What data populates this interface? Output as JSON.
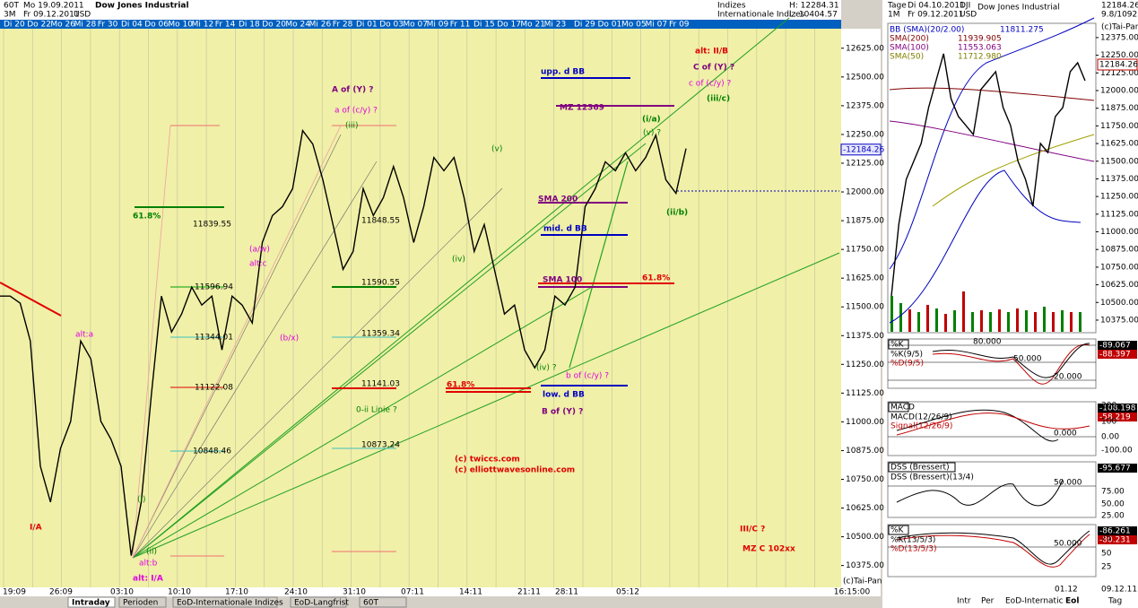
{
  "header": {
    "period": "60T",
    "from": "Mo 19.09.2011",
    "range": "3M",
    "to": "Fr 09.12.2011",
    "currency": "USD",
    "title": "Dow Jones Industrial",
    "group": "Indizes",
    "subgroup": "Internationale Indizes",
    "high": "H: 12284.31",
    "low": "L: 10404.57"
  },
  "date_strip": [
    "Di 20",
    "Do 22",
    "Mo 26",
    "Mi 28",
    "Fr 30",
    "Di 04",
    "Do 06",
    "Mo 10",
    "Mi 12",
    "Fr 14",
    "Di 18",
    "Do 20",
    "Mo 24",
    "Mi 26",
    "Fr 28",
    "Di 01",
    "Do 03",
    "Mo 07",
    "Mi 09",
    "Fr 11",
    "Di 15",
    "Do 17",
    "Mo 21",
    "Mi 23",
    "Di 29",
    "Do 01",
    "Mo 05",
    "Mi 07",
    "Fr 09"
  ],
  "x_labels": [
    "19:09",
    "26:09",
    "03:10",
    "10:10",
    "17:10",
    "24:10",
    "31:10",
    "07:11",
    "14:11",
    "21:11",
    "28:11",
    "05:12",
    "16:15:00"
  ],
  "chart_data": {
    "type": "line",
    "color": "#000000",
    "ylim": [
      10280,
      12710
    ],
    "values": [
      11547,
      11547,
      11516,
      11352,
      10807,
      10651,
      10885,
      11002,
      11352,
      11274,
      11002,
      10924,
      10807,
      10418,
      10651,
      11118,
      11547,
      11391,
      11469,
      11586,
      11508,
      11547,
      11313,
      11547,
      11508,
      11430,
      11780,
      11897,
      11936,
      12014,
      12267,
      12208,
      12053,
      11858,
      11663,
      11741,
      12014,
      11897,
      11975,
      12111,
      11975,
      11780,
      11936,
      12150,
      12092,
      12150,
      11975,
      11741,
      11858,
      11663,
      11469,
      11508,
      11313,
      11235,
      11313,
      11547,
      11508,
      11586,
      11936,
      12014,
      12131,
      12092,
      12170,
      12092,
      12150,
      12247,
      12053,
      11994,
      12189
    ],
    "yticks": [
      {
        "value": 10375,
        "label": "10375.00"
      },
      {
        "value": 10500,
        "label": "10500.00"
      },
      {
        "value": 10625,
        "label": "10625.00"
      },
      {
        "value": 10750,
        "label": "10750.00"
      },
      {
        "value": 10875,
        "label": "10875.00"
      },
      {
        "value": 11000,
        "label": "11000.00"
      },
      {
        "value": 11125,
        "label": "11125.00"
      },
      {
        "value": 11250,
        "label": "11250.00"
      },
      {
        "value": 11375,
        "label": "11375.00"
      },
      {
        "value": 11500,
        "label": "11500.00"
      },
      {
        "value": 11625,
        "label": "11625.00"
      },
      {
        "value": 11750,
        "label": "11750.00"
      },
      {
        "value": 11875,
        "label": "11875.00"
      },
      {
        "value": 12000,
        "label": "12000.00"
      },
      {
        "value": 12125,
        "label": "12125.00"
      },
      {
        "value": 12250,
        "label": "12250.00"
      },
      {
        "value": 12375,
        "label": "12375.00"
      },
      {
        "value": 12500,
        "label": "12500.00"
      },
      {
        "value": 12625,
        "label": "12625.00"
      }
    ],
    "last_price": {
      "value": 12184.26,
      "label": "-12184.26"
    }
  },
  "annotations": [
    {
      "text": "alt: II/B",
      "color": "#e00000"
    },
    {
      "text": "C of (Y) ?",
      "color": "#800080"
    },
    {
      "text": "c of (c/y) ?",
      "color": "#e000e0"
    },
    {
      "text": "(iii/c)",
      "color": "#008000"
    },
    {
      "text": "A of (Y) ?",
      "color": "#800080"
    },
    {
      "text": "a of (c/y) ?",
      "color": "#e000e0"
    },
    {
      "text": "(iii)",
      "color": "#008000"
    },
    {
      "text": "(v)",
      "color": "#008000"
    },
    {
      "text": "upp. d BB",
      "color": "#0000c0"
    },
    {
      "text": "MZ 12369",
      "color": "#800080"
    },
    {
      "text": "(i/a)",
      "color": "#008000"
    },
    {
      "text": "(v) ?",
      "color": "#008000"
    },
    {
      "text": "(ii/b)",
      "color": "#008000"
    },
    {
      "text": "SMA 200",
      "color": "#800080"
    },
    {
      "text": "mid. d BB",
      "color": "#0000c0"
    },
    {
      "text": "SMA 100",
      "color": "#800080"
    },
    {
      "text": "61.8%",
      "color": "#e00000"
    },
    {
      "text": "61.8%",
      "color": "#008000"
    },
    {
      "text": "(a/w)",
      "color": "#e000e0"
    },
    {
      "text": "alt:c",
      "color": "#e000e0"
    },
    {
      "text": "(b/x)",
      "color": "#e000e0"
    },
    {
      "text": "(iv)",
      "color": "#008000"
    },
    {
      "text": "alt:a",
      "color": "#e000e0"
    },
    {
      "text": "(iv) ?",
      "color": "#008000"
    },
    {
      "text": "b of (c/y) ?",
      "color": "#e000e0"
    },
    {
      "text": "61.8%",
      "color": "#e00000"
    },
    {
      "text": "low. d BB",
      "color": "#0000c0"
    },
    {
      "text": "B of (Y) ?",
      "color": "#800080"
    },
    {
      "text": "0-ii Linie ?",
      "color": "#008000"
    },
    {
      "text": "(c) twiccs.com",
      "color": "#e00000"
    },
    {
      "text": "(c) elliottwavesonline.com",
      "color": "#e00000"
    },
    {
      "text": "I/A",
      "color": "#e00000"
    },
    {
      "text": "(i)",
      "color": "#008000"
    },
    {
      "text": "(ii)",
      "color": "#008000"
    },
    {
      "text": "alt:b",
      "color": "#e000e0"
    },
    {
      "text": "alt: I/A",
      "color": "#e000e0"
    },
    {
      "text": "III/C ?",
      "color": "#e00000"
    },
    {
      "text": "MZ C  102xx",
      "color": "#e00000"
    },
    {
      "text": "(c)Tai-Pan",
      "color": "#000000"
    }
  ],
  "level_labels": [
    "11839.55",
    "11596.94",
    "11344.01",
    "11122.08",
    "10848.46",
    "11848.55",
    "11590.55",
    "11359.34",
    "11141.03",
    "10873.24"
  ],
  "tabs": [
    "Intraday",
    "Perioden",
    "EoD-Internationale Indizes",
    "EoD-Langfrist",
    "60T"
  ],
  "right_panel": {
    "period": "Tage",
    "from": "Di 04.10.2011",
    "symbol": "DJI",
    "title": "Dow Jones Industrial",
    "range": "1M",
    "to": "Fr 09.12.2011",
    "currency": "USD",
    "price": "12184.26",
    "extra": "9.8/1092.2",
    "copyright": "(c)Tai-Pan",
    "legend": [
      {
        "name": "BB (SMA)(20/2.00)",
        "value": "11811.275",
        "color": "#0000c0"
      },
      {
        "name": "SMA(200)",
        "value": "11939.905",
        "color": "#800000"
      },
      {
        "name": "SMA(100)",
        "value": "11553.063",
        "color": "#800080"
      },
      {
        "name": "SMA(50)",
        "value": "11712.980",
        "color": "#808000"
      }
    ],
    "chart_data": {
      "type": "line",
      "color": "#000000",
      "ylim": [
        10324,
        12438
      ],
      "values": [
        10546,
        11054,
        11372,
        11499,
        11626,
        11880,
        12070,
        12261,
        11943,
        11816,
        11753,
        11689,
        12007,
        12070,
        12134,
        11880,
        11753,
        11499,
        11372,
        11181,
        11626,
        11562,
        11816,
        11880,
        12134,
        12197,
        12070
      ],
      "yticks": [
        {
          "value": 10375,
          "label": "10375.00"
        },
        {
          "value": 10500,
          "label": "10500.00"
        },
        {
          "value": 10625,
          "label": "10625.00"
        },
        {
          "value": 10750,
          "label": "10750.00"
        },
        {
          "value": 10875,
          "label": "10875.00"
        },
        {
          "value": 11000,
          "label": "11000.00"
        },
        {
          "value": 11125,
          "label": "11125.00"
        },
        {
          "value": 11250,
          "label": "11250.00"
        },
        {
          "value": 11375,
          "label": "11375.00"
        },
        {
          "value": 11500,
          "label": "11500.00"
        },
        {
          "value": 11625,
          "label": "11625.00"
        },
        {
          "value": 11750,
          "label": "11750.00"
        },
        {
          "value": 11875,
          "label": "11875.00"
        },
        {
          "value": 12000,
          "label": "12000.00"
        },
        {
          "value": 12125,
          "label": "12125.00"
        },
        {
          "value": 12250,
          "label": "12250.00"
        },
        {
          "value": 12375,
          "label": "12375.00"
        }
      ]
    },
    "panels": [
      {
        "title": "%K",
        "lines": [
          "%K(9/5)",
          "%D(9/5)"
        ],
        "levels": [
          "80.000",
          "50.000",
          "20.000"
        ],
        "values": [
          "-89.067",
          "-88.397"
        ],
        "ticks": []
      },
      {
        "title": "MACD",
        "lines": [
          "MACD(12/26/9)",
          "Signal(12/26/9)"
        ],
        "levels": [
          "0.000"
        ],
        "values": [
          "-108.198",
          "-58.219"
        ],
        "ticks": [
          "200",
          "100",
          "0.00",
          "-100.00"
        ]
      },
      {
        "title": "DSS (Bressert)",
        "lines": [
          "DSS (Bressert)(13/4)"
        ],
        "levels": [
          "50.000"
        ],
        "values": [
          "-95.677"
        ],
        "ticks": [
          "75.00",
          "50.00",
          "25.00"
        ]
      },
      {
        "title": "%K",
        "lines": [
          "%K(13/5/3)",
          "%D(13/5/3)"
        ],
        "levels": [
          "50.000"
        ],
        "values": [
          "-86.261",
          "-80.231"
        ],
        "ticks": [
          "75",
          "50",
          "25"
        ]
      }
    ],
    "footer": [
      "01.12",
      "09.12.11",
      "Intr",
      "Per",
      "EoD-Internatic",
      "Eol",
      "Tag"
    ]
  }
}
